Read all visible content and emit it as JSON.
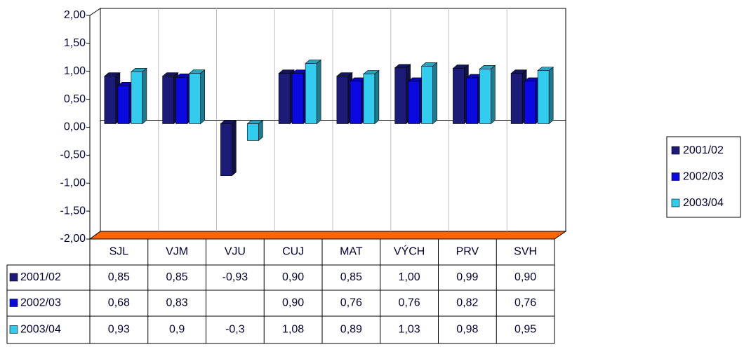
{
  "chart_data": {
    "type": "bar",
    "categories": [
      "SJL",
      "VJM",
      "VJU",
      "CUJ",
      "MAT",
      "VÝCH",
      "PRV",
      "SVH"
    ],
    "series": [
      {
        "name": "2001/02",
        "color": "#1c1c78",
        "values": [
          0.85,
          0.85,
          -0.93,
          0.9,
          0.85,
          1.0,
          0.99,
          0.9
        ],
        "value_labels": [
          "0,85",
          "0,85",
          "-0,93",
          "0,90",
          "0,85",
          "1,00",
          "0,99",
          "0,90"
        ]
      },
      {
        "name": "2002/03",
        "color": "#0a0ae0",
        "values": [
          0.68,
          0.83,
          null,
          0.9,
          0.76,
          0.76,
          0.82,
          0.76
        ],
        "value_labels": [
          "0,68",
          "0,83",
          null,
          "0,90",
          "0,76",
          "0,76",
          "0,82",
          "0,76"
        ]
      },
      {
        "name": "2003/04",
        "color": "#33ccee",
        "values": [
          0.93,
          0.9,
          -0.3,
          1.08,
          0.89,
          1.03,
          0.98,
          0.95
        ],
        "value_labels": [
          "0,93",
          "0,9",
          "-0,3",
          "1,08",
          "0,89",
          "1,03",
          "0,98",
          "0,95"
        ]
      }
    ],
    "ylim": [
      -2,
      2
    ],
    "yticks": [
      {
        "value": -2,
        "label": "-2,00"
      },
      {
        "value": -1.5,
        "label": "-1,50"
      },
      {
        "value": -1,
        "label": "-1,00"
      },
      {
        "value": -0.5,
        "label": "-0,50"
      },
      {
        "value": 0,
        "label": "0,00"
      },
      {
        "value": 0.5,
        "label": "0,50"
      },
      {
        "value": 1,
        "label": "1,00"
      },
      {
        "value": 1.5,
        "label": "1,50"
      },
      {
        "value": 2,
        "label": "2,00"
      }
    ],
    "grid": true,
    "legend": "right"
  }
}
